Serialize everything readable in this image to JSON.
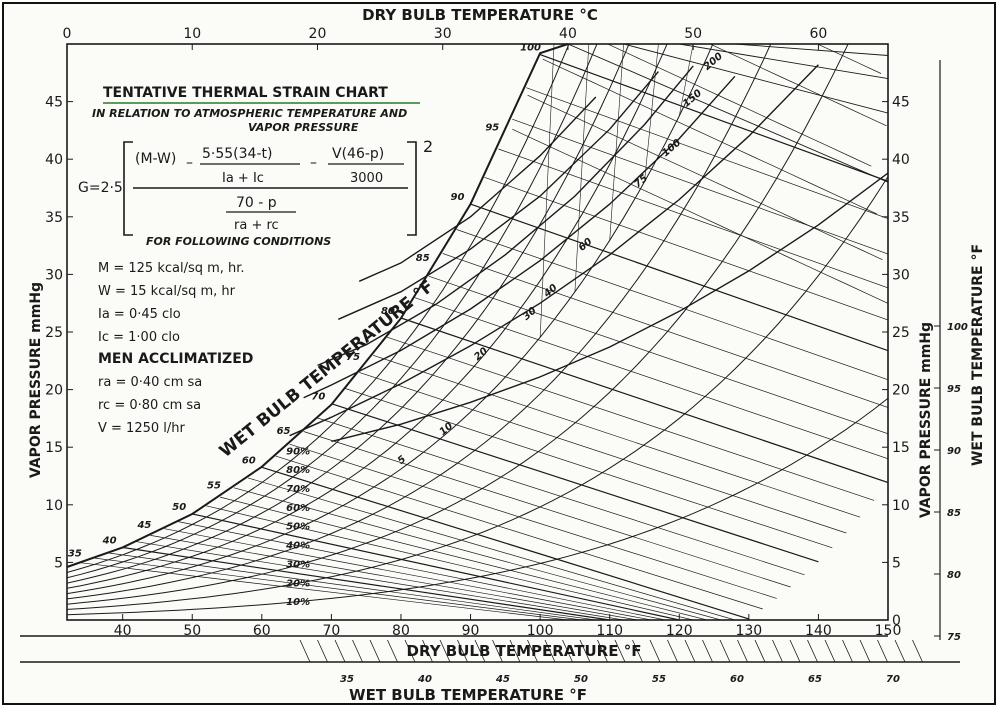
{
  "chart_data": {
    "type": "line",
    "title": "TENTATIVE THERMAL STRAIN CHART",
    "subtitle_lines": [
      "IN RELATION TO ATMOSPHERIC TEMPERATURE AND",
      "VAPOR PRESSURE"
    ],
    "formula": {
      "lhs": "G=2·5",
      "num_term1": "(M-W)",
      "num_term2_top": "5·55(34-t)",
      "num_term2_bottom": "Ia + Ic",
      "num_term3_top": "V(46-p)",
      "num_term3_bottom": "3000",
      "exponent": "2",
      "den_top": "70 - p",
      "den_bottom": "ra + rc"
    },
    "conditions_heading": "FOR FOLLOWING CONDITIONS",
    "conditions": [
      "M = 125 kcal/sq m, hr.",
      "W = 15 kcal/sq m, hr",
      "Ia = 0·45 clo",
      "Ic = 1·00 clo"
    ],
    "acclimatized_heading": "MEN ACCLIMATIZED",
    "acclimatized": [
      "ra = 0·40 cm sa",
      "rc = 0·80 cm sa",
      "V = 1250 l/hr"
    ],
    "xlabel_top": "DRY BULB TEMPERATURE °C",
    "xlabel_bottom": "DRY BULB TEMPERATURE °F",
    "xlabel_wetbulb": "WET BULB TEMPERATURE °F",
    "ylabel_left": "VAPOR PRESSURE mmHg",
    "ylabel_right": "VAPOR PRESSURE mmHg",
    "ylabel_right_wb": "WET BULB TEMPERATURE °F",
    "curve_label_wb": "WET BULB TEMPERATURE °F",
    "x_ticks_f": [
      "40",
      "50",
      "60",
      "70",
      "80",
      "90",
      "100",
      "110",
      "120",
      "130",
      "140",
      "150"
    ],
    "x_ticks_c": [
      "0",
      "10",
      "20",
      "30",
      "40",
      "50",
      "60"
    ],
    "y_ticks_left": [
      "5",
      "10",
      "15",
      "20",
      "25",
      "30",
      "35",
      "40",
      "45"
    ],
    "y_ticks_right": [
      "0",
      "5",
      "10",
      "15",
      "20",
      "25",
      "30",
      "35",
      "40",
      "45"
    ],
    "wb_right_ticks": [
      "75",
      "80",
      "85",
      "90",
      "95",
      "100"
    ],
    "wb_bottom_ticks": [
      "35",
      "40",
      "45",
      "50",
      "55",
      "60",
      "65",
      "70"
    ],
    "saturation_wb_labels": [
      "35",
      "40",
      "45",
      "50",
      "55",
      "60",
      "65",
      "70",
      "75",
      "80",
      "85",
      "90",
      "95",
      "100"
    ],
    "rh_labels": [
      "10%",
      "20%",
      "30%",
      "40%",
      "50%",
      "60%",
      "70%",
      "80%",
      "90%"
    ],
    "strain_labels": [
      "5",
      "10",
      "20",
      "30",
      "40",
      "60",
      "75",
      "100",
      "150",
      "200"
    ],
    "xlim_f": [
      32,
      150
    ],
    "ylim": [
      0,
      50
    ],
    "saturation_curve": {
      "x": [
        32,
        40,
        50,
        60,
        70,
        80,
        90,
        100,
        104
      ],
      "y": [
        4.6,
        6.3,
        9.2,
        13.3,
        18.7,
        26.2,
        36.1,
        49.2,
        50
      ]
    },
    "strain_curves": [
      {
        "name": "5",
        "x": [
          70,
          80,
          90,
          100,
          110,
          120,
          130,
          140,
          150
        ],
        "y": [
          15.5,
          17,
          18.9,
          21.1,
          23.7,
          26.8,
          30.3,
          34.3,
          38.8
        ]
      },
      {
        "name": "10",
        "x": [
          64,
          70,
          80,
          90,
          100,
          110,
          120,
          130,
          140
        ],
        "y": [
          16,
          17.6,
          20.5,
          23.8,
          27.5,
          31.7,
          36.5,
          42,
          48.2
        ]
      },
      {
        "name": "20",
        "x": [
          66,
          70,
          80,
          90,
          100,
          110,
          120,
          128
        ],
        "y": [
          19.3,
          20.4,
          23.4,
          27,
          31.2,
          36.1,
          41.8,
          47.2
        ]
      },
      {
        "name": "30",
        "x": [
          68,
          75,
          85,
          95,
          105,
          115,
          122
        ],
        "y": [
          22.1,
          23.9,
          27.4,
          31.7,
          36.8,
          43,
          48.1
        ]
      },
      {
        "name": "60",
        "x": [
          71,
          80,
          90,
          100,
          110,
          117
        ],
        "y": [
          26.1,
          28.5,
          32.2,
          36.8,
          42.6,
          47.6
        ]
      },
      {
        "name": "100",
        "x": [
          74,
          80,
          90,
          100,
          108
        ],
        "y": [
          29.4,
          31,
          35,
          40.3,
          45.4
        ]
      }
    ],
    "rh_curves": [
      10,
      20,
      30,
      40,
      50,
      60,
      70,
      80,
      90
    ],
    "grid": false
  }
}
